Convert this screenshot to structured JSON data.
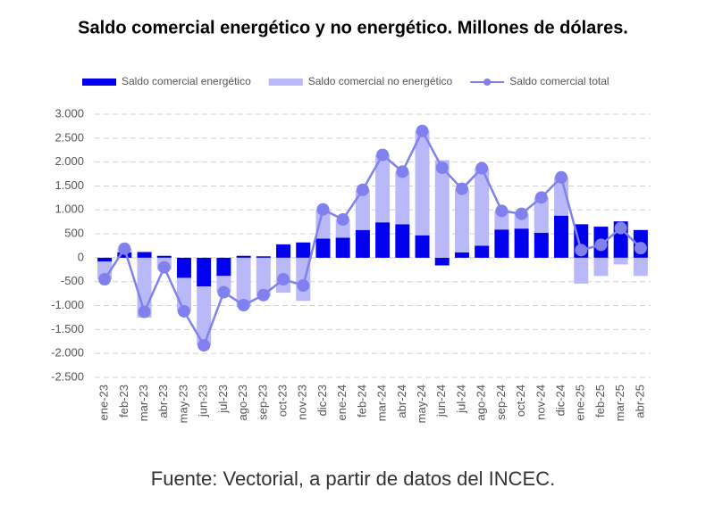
{
  "chart_data": {
    "type": "bar_line",
    "title": "Saldo comercial energético y no energético. Millones de dólares.",
    "source": "Fuente: Vectorial, a partir de datos del INCEC.",
    "categories": [
      "ene-23",
      "feb-23",
      "mar-23",
      "abr-23",
      "may-23",
      "jun-23",
      "jul-23",
      "ago-23",
      "sep-23",
      "oct-23",
      "nov-23",
      "dic-23",
      "ene-24",
      "feb-24",
      "mar-24",
      "abr-24",
      "may-24",
      "jun-24",
      "jul-24",
      "ago-24",
      "sep-24",
      "oct-24",
      "nov-24",
      "dic-24",
      "ene-25",
      "feb-25",
      "mar-25",
      "abr-25"
    ],
    "series": [
      {
        "name": "Saldo comercial energético",
        "type": "bar",
        "color": "#0000ee",
        "values": [
          -80,
          110,
          120,
          40,
          -420,
          -600,
          -380,
          40,
          30,
          280,
          320,
          400,
          420,
          580,
          740,
          700,
          470,
          -160,
          110,
          250,
          590,
          610,
          520,
          880,
          700,
          650,
          760,
          580
        ]
      },
      {
        "name": "Saldo comercial no energético",
        "type": "bar",
        "color": "#b9b9f9",
        "values": [
          -370,
          80,
          -1250,
          -240,
          -700,
          -1230,
          -340,
          -1030,
          -810,
          -730,
          -900,
          610,
          380,
          840,
          1410,
          1100,
          2180,
          2040,
          1330,
          1620,
          390,
          310,
          740,
          800,
          -540,
          -380,
          -140,
          -380
        ]
      },
      {
        "name": "Saldo comercial total",
        "type": "line",
        "color": "#8080ee",
        "values": [
          -450,
          190,
          -1130,
          -200,
          -1120,
          -1830,
          -720,
          -990,
          -780,
          -450,
          -580,
          1010,
          800,
          1420,
          2150,
          1800,
          2650,
          1880,
          1440,
          1870,
          980,
          920,
          1260,
          1680,
          160,
          270,
          620,
          200
        ]
      }
    ],
    "ylim": [
      -2500,
      3000
    ],
    "yticks": [
      {
        "value": -2500,
        "label": "-2.500"
      },
      {
        "value": -2000,
        "label": "-2.000"
      },
      {
        "value": -1500,
        "label": "-1.500"
      },
      {
        "value": -1000,
        "label": "-1.000"
      },
      -500,
      0,
      500,
      {
        "value": 1000,
        "label": "1.000"
      },
      {
        "value": 1500,
        "label": "1.500"
      },
      {
        "value": 2000,
        "label": "2.000"
      },
      {
        "value": 2500,
        "label": "2.500"
      },
      {
        "value": 3000,
        "label": "3.000"
      }
    ],
    "grid": true
  }
}
